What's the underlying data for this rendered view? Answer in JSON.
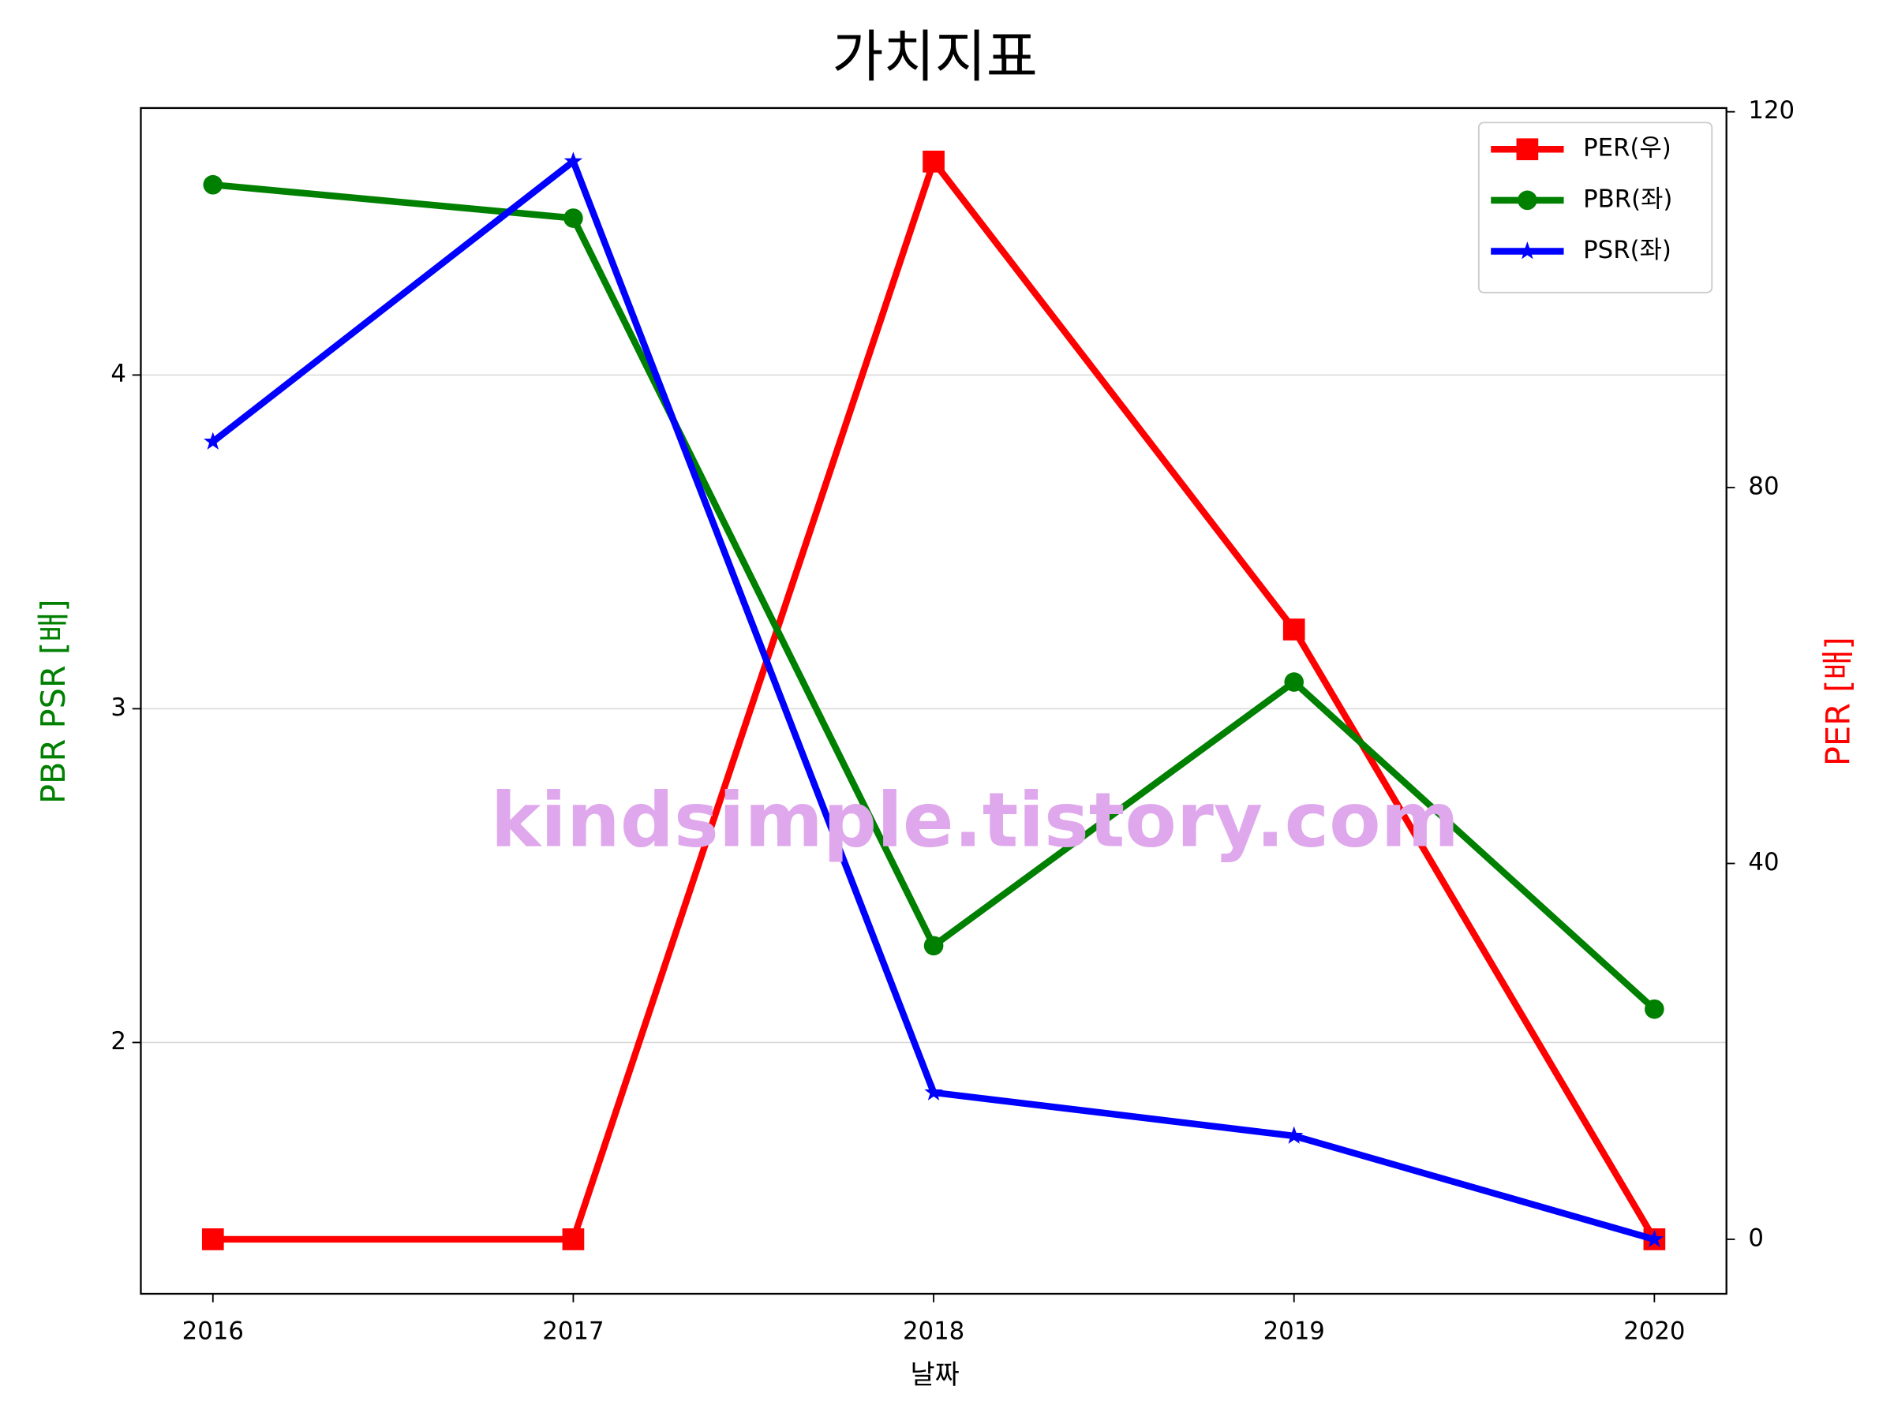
{
  "chart_data": {
    "type": "line",
    "title": "가치지표",
    "x_label": "날짜",
    "y_label": "PBR PSR [배]",
    "y2_label": "PER [배]",
    "x": [
      2016,
      2017,
      2018,
      2019,
      2020
    ],
    "xlim": [
      2015.8,
      2020.2
    ],
    "xticks": [
      2016,
      2017,
      2018,
      2019,
      2020
    ],
    "ylim": [
      1.247,
      4.8
    ],
    "yticks": [
      2,
      3,
      4
    ],
    "y2lim": [
      -5.8,
      120.4
    ],
    "y2ticks": [
      0,
      40,
      80,
      120
    ],
    "grid": true,
    "legend": "upper right",
    "series": [
      {
        "name": "PER(우)",
        "color": "#ff0000",
        "marker": "square",
        "axis": "y2",
        "values": [
          0,
          0,
          114.7,
          64.9,
          0
        ]
      },
      {
        "name": "PBR(좌)",
        "color": "#008000",
        "marker": "circle",
        "values": [
          4.57,
          4.47,
          2.29,
          3.08,
          2.1
        ]
      },
      {
        "name": "PSR(좌)",
        "color": "#0000ff",
        "marker": "star",
        "values": [
          3.8,
          4.64,
          1.85,
          1.72,
          1.41
        ]
      }
    ],
    "annotation": "kindsimple.tistory.com"
  }
}
